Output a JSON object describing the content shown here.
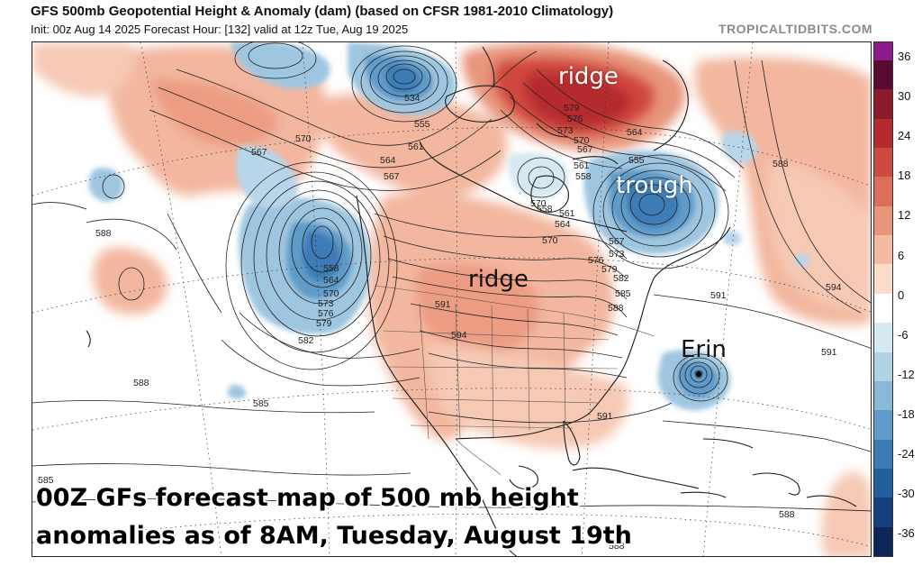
{
  "header": {
    "title": "GFS 500mb Geopotential Height & Anomaly (dam) (based on CFSR 1981-2010 Climatology)",
    "subtitle": "Init: 00z Aug 14 2025   Forecast Hour: [132]   valid at 12z Tue, Aug 19 2025",
    "brand": "TROPICALTIDBITS.COM"
  },
  "annotations": {
    "ridge_north": "ridge",
    "trough": "trough",
    "ridge_center": "ridge",
    "storm": "Erin"
  },
  "caption": {
    "line1": "00Z GFs forecast map of 500 mb height",
    "line2": "anomalies as of 8AM, Tuesday, August 19th"
  },
  "contour_labels": {
    "c555a": "555",
    "c561a": "561",
    "c567a": "567",
    "c564a": "564",
    "c570a": "570",
    "c534": "534",
    "c579n": "579",
    "c576n": "576",
    "c573n": "573",
    "c570n": "570",
    "c567n": "567",
    "c561n": "561",
    "c558n": "558",
    "c564e": "564",
    "c555t": "555",
    "c558t": "558",
    "c561t": "561",
    "c564t": "564",
    "c567t": "567",
    "c570t": "570",
    "c573t": "573",
    "c576t": "576",
    "c579t": "579",
    "c582t": "582",
    "c585t": "585",
    "c588t": "588",
    "c567w": "567",
    "c558w": "558",
    "c564w": "564",
    "c570w": "570",
    "c573w": "573",
    "c576w": "576",
    "c579w": "579",
    "c582w": "582",
    "c591c": "591",
    "c594c": "594",
    "c570c": "570",
    "c588w1": "588",
    "c588w2": "588",
    "c585w": "585",
    "c585sw": "585",
    "c588ne": "588",
    "c591ne": "591",
    "c594ne": "594",
    "c591e": "591",
    "c591gulf": "591",
    "c588s": "588",
    "c588se": "588"
  },
  "legend": {
    "ticks": [
      "36",
      "30",
      "24",
      "18",
      "12",
      "6",
      "0",
      "-6",
      "-12",
      "-18",
      "-24",
      "-30",
      "-36"
    ],
    "colors": [
      "#5a0a30",
      "#8c1a2a",
      "#b52a2e",
      "#cc4a40",
      "#dc6e5a",
      "#e8957c",
      "#f2bba2",
      "#fadccb",
      "#ffffff",
      "#d6e8f2",
      "#b2d2e6",
      "#8ab8d8",
      "#5e9bc9",
      "#3c7cb6",
      "#225e9c",
      "#143f7c",
      "#0b2657"
    ],
    "top_color": "#8a1a8e"
  },
  "colors": {
    "positive_anomaly": "#f3b79f",
    "strong_positive": "#c52a2a",
    "negative_anomaly": "#9fc6e0",
    "strong_negative": "#3c7cb6"
  }
}
